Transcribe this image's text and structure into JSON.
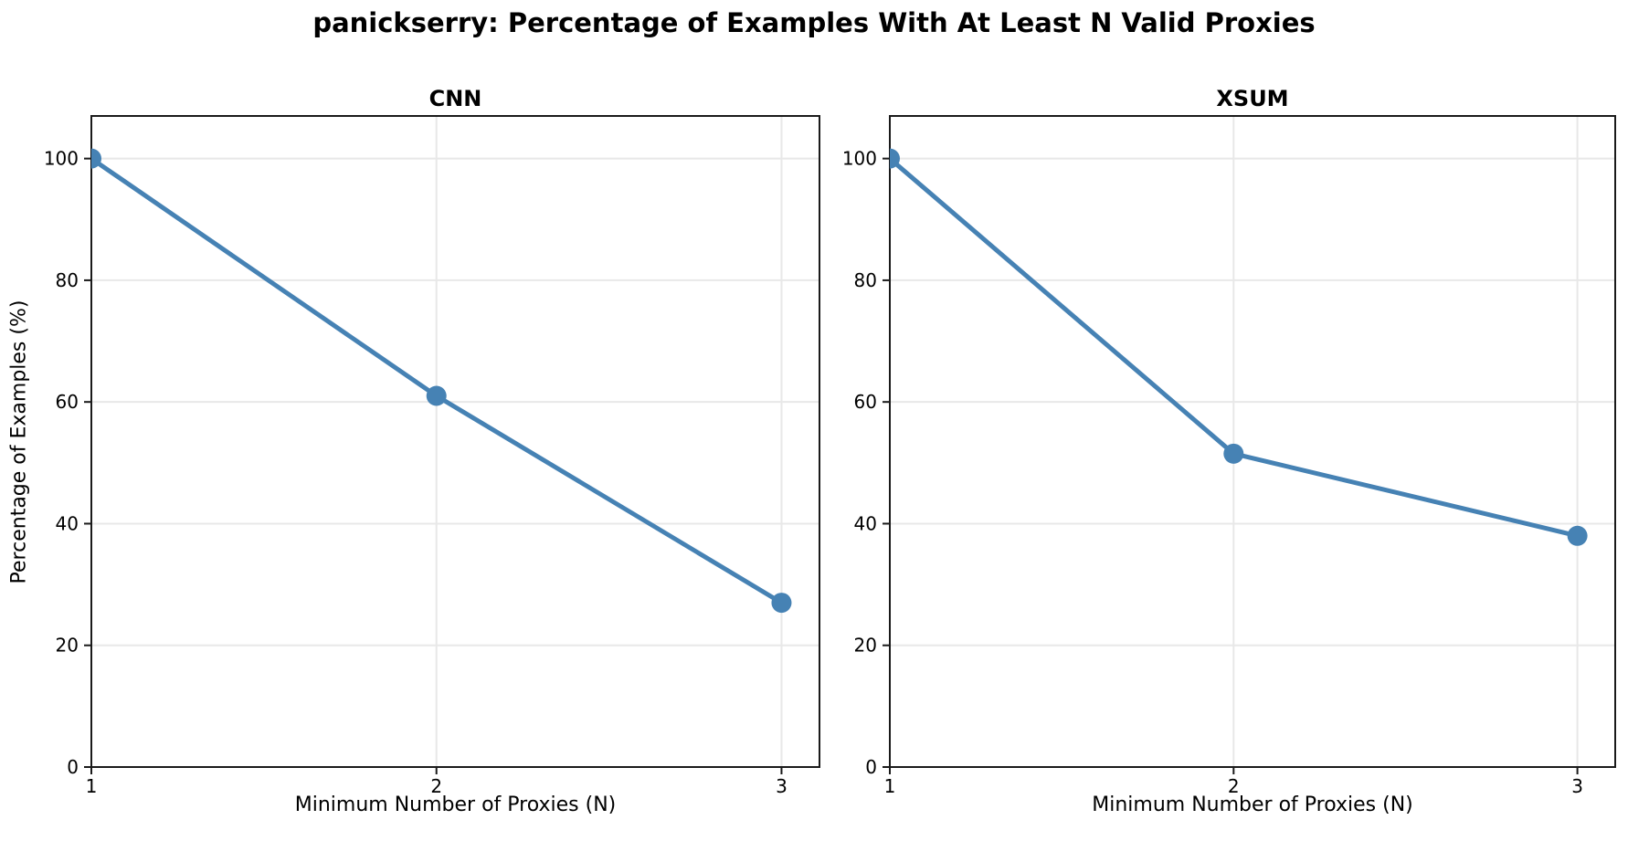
{
  "figure": {
    "title": "panickserry: Percentage of Examples With At Least N Valid Proxies",
    "background": "#ffffff"
  },
  "style": {
    "line_color": "#4682b4",
    "grid_color": "#e8e8e8",
    "axis_color": "#1a1a1a",
    "text_color": "#000000"
  },
  "chart_data": [
    {
      "type": "line",
      "title": "CNN",
      "xlabel": "Minimum Number of Proxies (N)",
      "ylabel": "Percentage of Examples (%)",
      "x": [
        1,
        2,
        3
      ],
      "values": [
        100,
        61,
        27
      ],
      "xticks": [
        1,
        2,
        3
      ],
      "yticks": [
        0,
        20,
        40,
        60,
        80,
        100
      ],
      "xlim": [
        1,
        3.11
      ],
      "ylim": [
        0,
        107
      ],
      "grid": true,
      "marker": "circle",
      "legend": "none"
    },
    {
      "type": "line",
      "title": "XSUM",
      "xlabel": "Minimum Number of Proxies (N)",
      "ylabel": "Percentage of Examples (%)",
      "x": [
        1,
        2,
        3
      ],
      "values": [
        100,
        51.5,
        38
      ],
      "xticks": [
        1,
        2,
        3
      ],
      "yticks": [
        0,
        20,
        40,
        60,
        80,
        100
      ],
      "xlim": [
        1,
        3.11
      ],
      "ylim": [
        0,
        107
      ],
      "grid": true,
      "marker": "circle",
      "legend": "none"
    }
  ]
}
